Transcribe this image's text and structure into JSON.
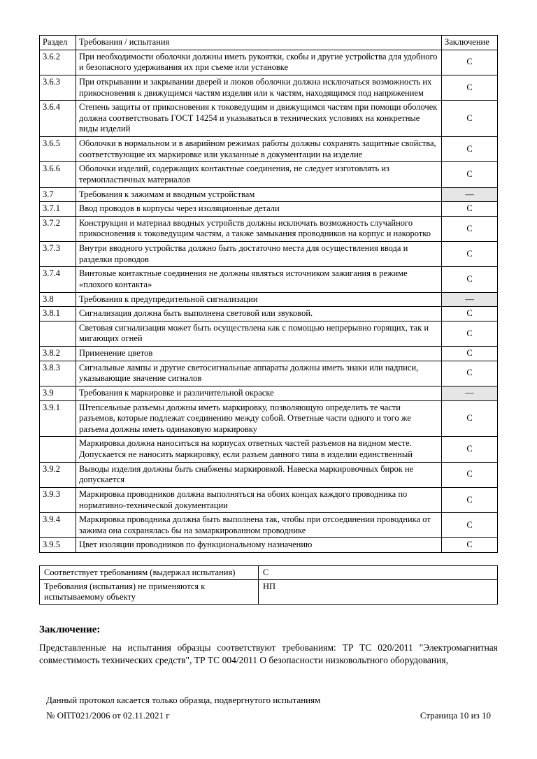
{
  "table": {
    "headers": {
      "section": "Раздел",
      "req": "Требования / испытания",
      "concl": "Заключение"
    },
    "rows": [
      {
        "sec": "3.6.2",
        "text": "При необходимости оболочки должны иметь рукоятки, скобы и другие устройства для удобного и безопасного удерживания их при съеме или установке",
        "concl": "С"
      },
      {
        "sec": "3.6.3",
        "text": "При открывании и закрывании дверей и люков оболочки должна исключаться возможность их прикосновения  к движущимся частям изделия или к частям, находящимся под напряжением",
        "concl": "С"
      },
      {
        "sec": "3.6.4",
        "text": "Степень защиты от прикосновения к токоведущим и движущимся частям при помощи оболочек должна соответствовать ГОСТ 14254 и указываться в технических условиях на конкретные виды изделий",
        "concl": "С"
      },
      {
        "sec": "3.6.5",
        "text": "Оболочки в нормальном и в аварийном режимах работы должны сохранять защитные свойства, соответствующие их маркировке или указанные в документации на изделие",
        "concl": "С"
      },
      {
        "sec": "3.6.6",
        "text": "Оболочки изделий, содержащих контактные соединения, не следует изготовлять из термопластичных материалов",
        "concl": "С"
      },
      {
        "sec": "3.7",
        "text": "Требования к зажимам и вводным устройствам",
        "concl": "—",
        "gray": true
      },
      {
        "sec": "3.7.1",
        "text": "Ввод проводов в корпусы через изоляционные детали",
        "concl": "С"
      },
      {
        "sec": "3.7.2",
        "text": "Конструкция и материал вводных устройств должны исключать возможность случайного прикосновения к токоведущим частям, а также замыкания проводников на корпус и накоротко",
        "concl": "С"
      },
      {
        "sec": "3.7.3",
        "text": "Внутри вводного устройства должно быть достаточно места для осуществления ввода и разделки проводов",
        "concl": "С"
      },
      {
        "sec": "3.7.4",
        "text": "Винтовые контактные соединения не должны являться источником зажигания в режиме «плохого контакта»",
        "concl": "С"
      },
      {
        "sec": "3.8",
        "text": "Требования к предупредительной сигнализации",
        "concl": "—",
        "gray": true
      },
      {
        "sec": "3.8.1",
        "text": "Сигнализация должна быть выполнена световой или звуковой.",
        "concl": "С"
      },
      {
        "sec": "",
        "text": "Световая сигнализация может быть осуществлена как с помощью непрерывно горящих, так и мигающих огней",
        "concl": "С"
      },
      {
        "sec": "3.8.2",
        "text": "Применение цветов",
        "concl": "С"
      },
      {
        "sec": "3.8.3",
        "text": "Сигнальные лампы и другие светосигнальные аппараты должны иметь знаки или надписи, указывающие значение сигналов",
        "concl": "С"
      },
      {
        "sec": "3.9",
        "text": "Требования к маркировке и различительной окраске",
        "concl": "—",
        "gray": true
      },
      {
        "sec": "3.9.1",
        "text": "Штепсельные разъемы должны иметь маркировку, позволяющую определить те части разъемов, которые подлежат соединению между собой. Ответные части одного и того же разъема должны иметь одинаковую маркировку",
        "concl": "С"
      },
      {
        "sec": "",
        "text": "Маркировка должна наноситься на корпусах ответных частей разъемов на видном месте. Допускается не наносить маркировку, если разъем данного типа в изделии единственный",
        "concl": "С"
      },
      {
        "sec": "3.9.2",
        "text": "Выводы изделия должны быть снабжены маркировкой. Навеска маркировочных бирок не допускается",
        "concl": "С"
      },
      {
        "sec": "3.9.3",
        "text": "Маркировка проводников должна выполняться на обоих концах каждого проводника по нормативно-технической документации",
        "concl": "С"
      },
      {
        "sec": "3.9.4",
        "text": "Маркировка проводника должна быть выполнена так, чтобы при отсоединении проводника от зажима она сохранялась бы на замаркированном проводнике",
        "concl": "С"
      },
      {
        "sec": "3.9.5",
        "text": "Цвет изоляции проводников по функциональному назначению",
        "concl": "С"
      }
    ]
  },
  "legend": {
    "r1": {
      "label": "Соответствует требованиям (выдержал испытания)",
      "code": "С"
    },
    "r2": {
      "label": "Требования (испытания) не применяются к испытываемому объекту",
      "code": "НП"
    }
  },
  "conclusion": {
    "heading": "Заключение:",
    "text": "Представленные на испытания образцы соответствуют требованиям: ТР ТС 020/2011 \"Электромагнитная совместимость технических средств\", ТР ТС 004/2011 О безопасности низковольтного оборудования,"
  },
  "footer": {
    "note": "Данный протокол касается только образца, подвергнутого испытаниям",
    "left": "№ ОПТ021/2006 от 02.11.2021 г",
    "right": "Страница 10 из 10"
  },
  "colors": {
    "gray_bg": "#e6e6e6",
    "text": "#000000",
    "bg": "#ffffff"
  }
}
